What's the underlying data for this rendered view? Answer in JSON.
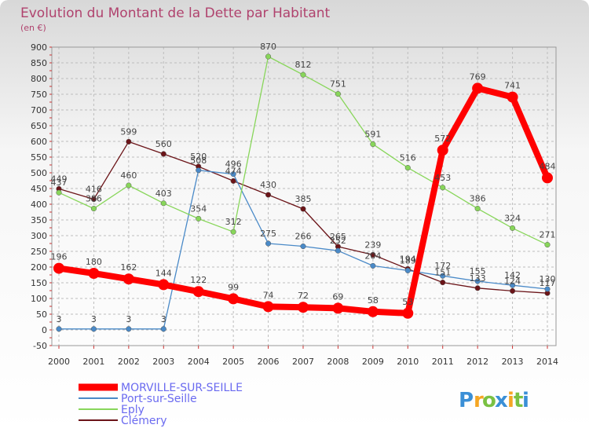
{
  "chart_data": {
    "type": "line",
    "title": "Evolution du Montant de la Dette par Habitant",
    "subtitle": "(en €)",
    "xlabel": "",
    "ylabel": "",
    "x": [
      "2000",
      "2001",
      "2002",
      "2003",
      "2004",
      "2005",
      "2006",
      "2007",
      "2008",
      "2009",
      "2010",
      "2011",
      "2012",
      "2013",
      "2014"
    ],
    "ylim": [
      -50,
      900
    ],
    "yticks": [
      "900",
      "850",
      "800",
      "750",
      "700",
      "650",
      "600",
      "550",
      "500",
      "450",
      "400",
      "350",
      "300",
      "250",
      "200",
      "150",
      "100",
      "50",
      "0",
      "-50"
    ],
    "grid": true,
    "legend_position": "bottom-left",
    "series": [
      {
        "name": "Clémery",
        "color": "#6b1418",
        "values": [
          449,
          416,
          599,
          560,
          520,
          474,
          430,
          385,
          265,
          239,
          194,
          151,
          133,
          124,
          117
        ],
        "labels": [
          "449",
          "416",
          "599",
          "560",
          "520",
          "474",
          "430",
          "385",
          "265",
          "239",
          "194",
          "151",
          "133",
          "124",
          "117"
        ]
      },
      {
        "name": "Port-sur-Seille",
        "color": "#4a8ac8",
        "values": [
          3,
          3,
          3,
          3,
          508,
          496,
          275,
          266,
          252,
          204,
          189,
          172,
          155,
          142,
          130
        ],
        "labels": [
          "3",
          "3",
          "3",
          "3",
          "508",
          "496",
          "275",
          "266",
          "252",
          "204",
          "189",
          "172",
          "155",
          "142",
          "130"
        ]
      },
      {
        "name": "Eply",
        "color": "#88d65a",
        "values": [
          437,
          386,
          460,
          403,
          354,
          312,
          870,
          812,
          751,
          591,
          516,
          453,
          386,
          324,
          271
        ],
        "labels": [
          "437",
          "386",
          "460",
          "403",
          "354",
          "312",
          "870",
          "812",
          "751",
          "591",
          "516",
          "453",
          "386",
          "324",
          "271"
        ]
      },
      {
        "name": "MORVILLE-SUR-SEILLE",
        "color": "#ff0000",
        "values": [
          196,
          180,
          162,
          144,
          122,
          99,
          74,
          72,
          69,
          58,
          53,
          572,
          769,
          741,
          484
        ],
        "labels": [
          "196",
          "180",
          "162",
          "144",
          "122",
          "99",
          "74",
          "72",
          "69",
          "58",
          "53",
          "572",
          "769",
          "741",
          "484"
        ]
      }
    ],
    "legend": [
      "MORVILLE-SUR-SEILLE",
      "Port-sur-Seille",
      "Eply",
      "Clémery"
    ]
  },
  "brand": {
    "letters": [
      "P",
      "r",
      "o",
      "x",
      "i",
      "t",
      "i"
    ],
    "colors": [
      "#3a8fd6",
      "#f5a623",
      "#7ac143",
      "#3a8fd6",
      "#f5a623",
      "#7ac143",
      "#3a8fd6"
    ]
  }
}
